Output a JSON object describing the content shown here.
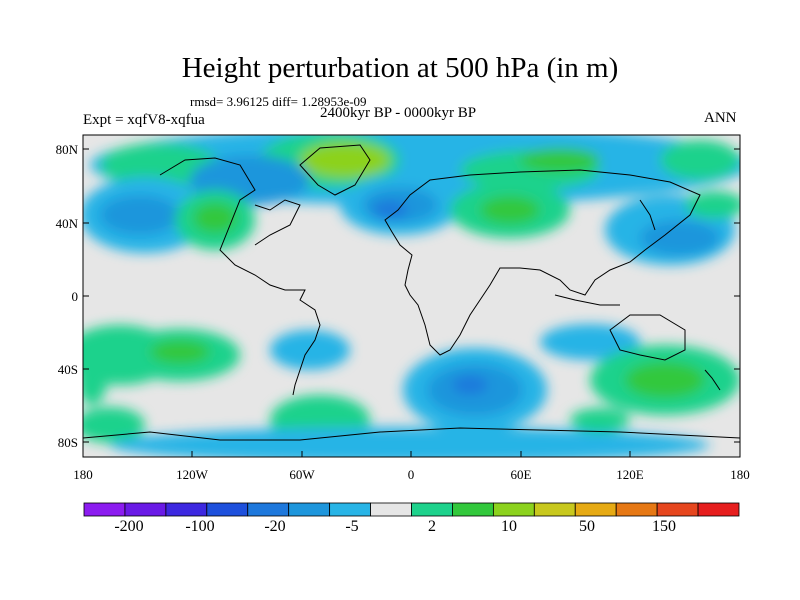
{
  "title": "Height perturbation at 500 hPa (in m)",
  "stats": "rmsd= 3.96125 diff= 1.28953e-09",
  "period": "2400kyr BP - 0000kyr BP",
  "experiment": "Expt = xqfV8-xqfua",
  "season": "ANN",
  "lat_labels": [
    "80N",
    "40N",
    "0",
    "40S",
    "80S"
  ],
  "lon_labels": [
    "180",
    "120W",
    "60W",
    "0",
    "60E",
    "120E",
    "180"
  ],
  "colorbar": {
    "colors": [
      "#8c1cf0",
      "#6a1ae6",
      "#3d28e0",
      "#1e50dc",
      "#1e78dc",
      "#1e96dc",
      "#28b4e6",
      "#e6e6e6",
      "#1ed28c",
      "#32c83c",
      "#8cd21e",
      "#c8c81e",
      "#e6aa14",
      "#e67814",
      "#e6461e",
      "#e61e1e"
    ],
    "labels": [
      "-200",
      "-100",
      "-20",
      "-5",
      "2",
      "10",
      "50",
      "150"
    ]
  }
}
